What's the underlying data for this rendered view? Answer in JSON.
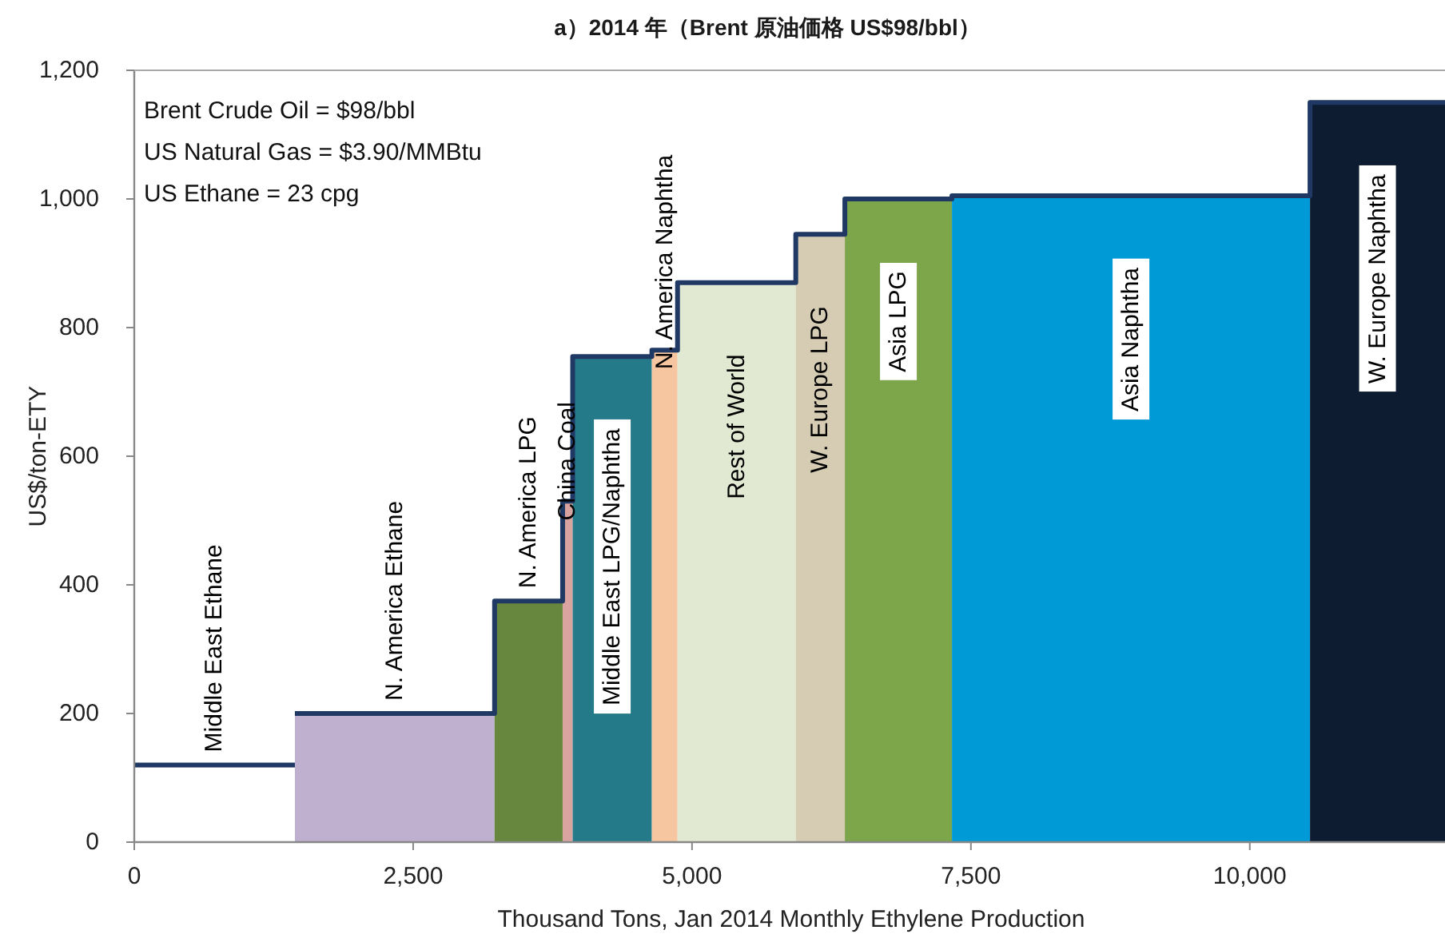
{
  "chart_data": {
    "type": "area",
    "title": "a）2014 年（Brent 原油価格 US$98/bbl）",
    "xlabel": "Thousand Tons, Jan 2014 Monthly Ethylene Production",
    "ylabel": "US$/ton-ETY",
    "annotations": [
      "Brent Crude Oil = $98/bbl",
      "US Natural Gas = $3.90/MMBtu",
      "US Ethane = 23 cpg"
    ],
    "xlim": [
      0,
      11750
    ],
    "ylim": [
      0,
      1200
    ],
    "xticks": [
      0,
      {
        "value": 2500,
        "label": "2,500"
      },
      {
        "value": 5000,
        "label": "5,000"
      },
      {
        "value": 7500,
        "label": "7,500"
      },
      {
        "value": 10000,
        "label": "10,000"
      }
    ],
    "yticks": [
      0,
      200,
      400,
      600,
      800,
      {
        "value": 1000,
        "label": "1,000"
      },
      {
        "value": 1200,
        "label": "1,200"
      }
    ],
    "series": [
      {
        "name": "Middle East Ethane",
        "type": "line",
        "color": "#1f3864",
        "x": [
          0,
          1440
        ],
        "values": [
          120,
          120
        ]
      },
      {
        "name": "N. America Ethane",
        "color": "#bfb0d0",
        "x": [
          1440,
          3230
        ],
        "values": [
          200,
          200
        ]
      },
      {
        "name": "N. America LPG",
        "color": "#68873e",
        "x": [
          3230,
          3840
        ],
        "values": [
          375,
          375
        ]
      },
      {
        "name": "China Coal",
        "color": "#d9a3a0",
        "x": [
          3840,
          3930
        ],
        "values": [
          530,
          530
        ]
      },
      {
        "name": "Middle East LPG/Naphtha",
        "color": "#257a8a",
        "x": [
          3930,
          4640
        ],
        "values": [
          755,
          755
        ]
      },
      {
        "name": "N. America Naphtha",
        "color": "#f5c6a0",
        "x": [
          4640,
          4870
        ],
        "values": [
          765,
          765
        ]
      },
      {
        "name": "Rest of World",
        "color": "#e2e9d3",
        "x": [
          4870,
          5930
        ],
        "values": [
          870,
          870
        ]
      },
      {
        "name": "W. Europe LPG",
        "color": "#d5ccb3",
        "x": [
          5930,
          6370
        ],
        "values": [
          945,
          945
        ]
      },
      {
        "name": "Asia LPG",
        "color": "#7da54a",
        "x": [
          6370,
          7330
        ],
        "values": [
          1000,
          1000
        ]
      },
      {
        "name": "Asia Naphtha",
        "color": "#009ad7",
        "x": [
          7330,
          10540
        ],
        "values": [
          1005,
          1005
        ]
      },
      {
        "name": "W. Europe Naphtha",
        "color": "#0d1c30",
        "x": [
          10540,
          11750
        ],
        "values": [
          1150,
          1150
        ]
      },
      {
        "type": "step",
        "color": "#1f3864",
        "x": [
          1440,
          3230,
          3840,
          3930,
          4640,
          4870,
          5930,
          6370,
          7330,
          10540,
          11750
        ],
        "values": [
          200,
          375,
          530,
          755,
          765,
          870,
          945,
          1000,
          1005,
          1150,
          1150
        ]
      }
    ]
  }
}
